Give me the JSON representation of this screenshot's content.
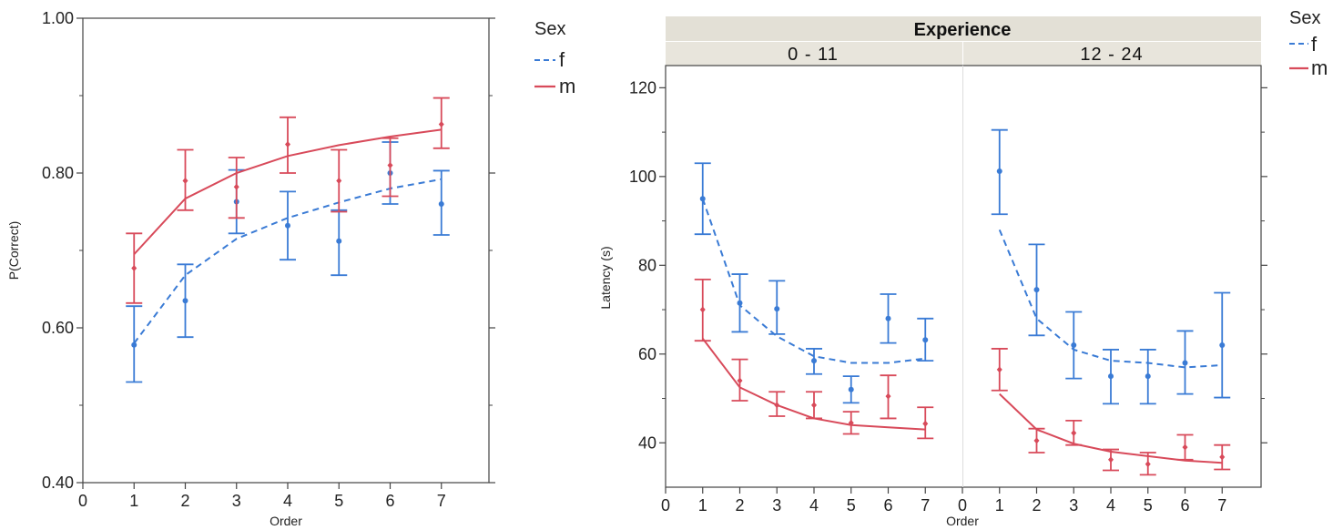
{
  "chart_data": [
    {
      "type": "line",
      "panel": "left",
      "xlabel": "Order",
      "ylabel": "P(Correct)",
      "xlim": [
        0,
        8
      ],
      "ylim": [
        0.4,
        1.0
      ],
      "x_ticks": [
        0,
        1,
        2,
        3,
        4,
        5,
        6,
        7
      ],
      "y_ticks": [
        "0.40",
        "0.60",
        "0.80",
        "1.00"
      ],
      "y_tick_values": [
        0.4,
        0.6,
        0.8,
        1.0
      ],
      "legend": {
        "title": "Sex",
        "entries": [
          {
            "label": "f",
            "style": "dashed"
          },
          {
            "label": "m",
            "style": "solid"
          }
        ]
      },
      "series": [
        {
          "name": "f",
          "color": "#3a7bd5",
          "line": "dashed",
          "x": [
            1,
            2,
            3,
            4,
            5,
            6,
            7
          ],
          "points": [
            0.578,
            0.635,
            0.763,
            0.732,
            0.712,
            0.8,
            0.76
          ],
          "lower": [
            0.53,
            0.588,
            0.722,
            0.688,
            0.668,
            0.76,
            0.72
          ],
          "upper": [
            0.628,
            0.682,
            0.804,
            0.776,
            0.752,
            0.84,
            0.803
          ],
          "fit": [
            0.58,
            0.668,
            0.715,
            0.742,
            0.762,
            0.78,
            0.792
          ]
        },
        {
          "name": "m",
          "color": "#d84a5a",
          "line": "solid",
          "x": [
            1,
            2,
            3,
            4,
            5,
            6,
            7
          ],
          "points": [
            0.677,
            0.79,
            0.782,
            0.837,
            0.79,
            0.81,
            0.863
          ],
          "lower": [
            0.632,
            0.752,
            0.742,
            0.8,
            0.75,
            0.77,
            0.832
          ],
          "upper": [
            0.722,
            0.83,
            0.82,
            0.872,
            0.83,
            0.845,
            0.897
          ],
          "fit": [
            0.695,
            0.767,
            0.8,
            0.822,
            0.836,
            0.847,
            0.856
          ]
        }
      ]
    },
    {
      "type": "line",
      "panel": "right",
      "facet_title": "Experience",
      "facets": [
        "0 - 11",
        "12 - 24"
      ],
      "xlabel": "Order",
      "ylabel": "Latency (s)",
      "xlim": [
        0,
        8
      ],
      "ylim": [
        30,
        125
      ],
      "x_ticks": [
        0,
        1,
        2,
        3,
        4,
        5,
        6,
        7
      ],
      "y_ticks": [
        "40",
        "60",
        "80",
        "100",
        "120"
      ],
      "y_tick_values": [
        40,
        60,
        80,
        100,
        120
      ],
      "legend": {
        "title": "Sex",
        "entries": [
          {
            "label": "f",
            "style": "dashed"
          },
          {
            "label": "m",
            "style": "solid"
          }
        ]
      },
      "series": [
        {
          "name": "f",
          "facet": "0 - 11",
          "color": "#3a7bd5",
          "line": "dashed",
          "x": [
            1,
            2,
            3,
            4,
            5,
            6,
            7
          ],
          "points": [
            95,
            71.5,
            70.2,
            58.5,
            52,
            68,
            63.2
          ],
          "lower": [
            87,
            65,
            64.5,
            55.5,
            49,
            62.5,
            58.5
          ],
          "upper": [
            103,
            78,
            76.5,
            61.2,
            55,
            73.5,
            68
          ],
          "fit": [
            95,
            71,
            64,
            59.5,
            58,
            58,
            59
          ]
        },
        {
          "name": "m",
          "facet": "0 - 11",
          "color": "#d84a5a",
          "line": "solid",
          "x": [
            1,
            2,
            3,
            4,
            5,
            6,
            7
          ],
          "points": [
            70,
            54,
            48.5,
            48.5,
            44.5,
            50.5,
            44.3
          ],
          "lower": [
            63,
            49.5,
            46,
            45.5,
            42,
            45.5,
            41
          ],
          "upper": [
            76.8,
            58.8,
            51.5,
            51.5,
            47,
            55.2,
            48
          ],
          "fit": [
            63.5,
            52.5,
            48.5,
            45.5,
            44,
            43.5,
            43
          ]
        },
        {
          "name": "f",
          "facet": "12 - 24",
          "color": "#3a7bd5",
          "line": "dashed",
          "x": [
            1,
            2,
            3,
            4,
            5,
            6,
            7
          ],
          "points": [
            101.2,
            74.5,
            62,
            55,
            55,
            58,
            62
          ],
          "lower": [
            91.5,
            64.2,
            54.5,
            48.8,
            48.8,
            51,
            50.2
          ],
          "upper": [
            110.5,
            84.7,
            69.5,
            61,
            61,
            65.2,
            73.8
          ],
          "fit": [
            88,
            68,
            61,
            58.5,
            58,
            57,
            57.5
          ]
        },
        {
          "name": "m",
          "facet": "12 - 24",
          "color": "#d84a5a",
          "line": "solid",
          "x": [
            1,
            2,
            3,
            4,
            5,
            6,
            7
          ],
          "points": [
            56.5,
            40.5,
            42.2,
            36.2,
            35.2,
            39,
            36.8
          ],
          "lower": [
            51.8,
            37.8,
            39.5,
            33.8,
            32.8,
            36.2,
            34
          ],
          "upper": [
            61.2,
            43.2,
            45,
            38.5,
            37.8,
            41.8,
            39.5
          ],
          "fit": [
            51,
            43,
            39.8,
            38,
            37,
            36,
            35.5
          ]
        }
      ]
    }
  ]
}
